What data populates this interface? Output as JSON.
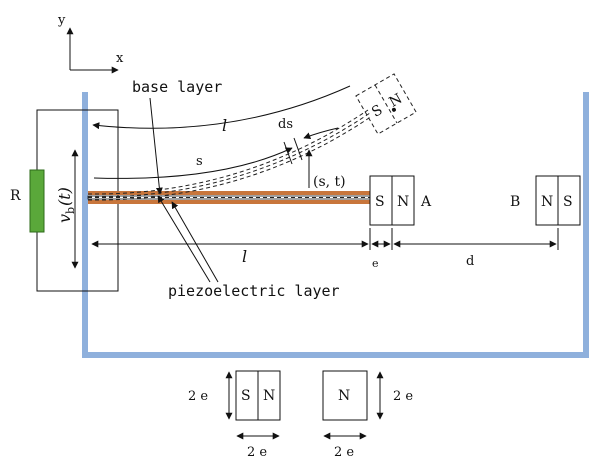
{
  "axes": {
    "y_label": "y",
    "x_label": "x"
  },
  "labels": {
    "resistor": "R",
    "voltage": "v",
    "voltage_sub": "b",
    "voltage_arg": "(t)",
    "base_layer": "base layer",
    "piezo_layer": "piezoelectric layer",
    "length_top": "l",
    "length_bottom": "l",
    "arc_s": "s",
    "ds": "ds",
    "coord": "(s, t)",
    "magnet_A": "A",
    "magnet_B": "B",
    "dim_e": "e",
    "dim_d": "d",
    "dim_2e_left": "2  e",
    "dim_2e_right": "2  e",
    "dim_2e_bottom1": "2  e",
    "dim_2e_bottom2": "2  e"
  },
  "magnets": {
    "tip_left": "S",
    "tip_right": "N",
    "A_left": "S",
    "A_right": "N",
    "B_left": "N",
    "B_right": "S",
    "legend1_left": "S",
    "legend1_right": "N",
    "legend2": "N"
  },
  "colors": {
    "container": "#8fb0dc",
    "resistor": "#5aa83a",
    "copper": "#c8763c"
  }
}
